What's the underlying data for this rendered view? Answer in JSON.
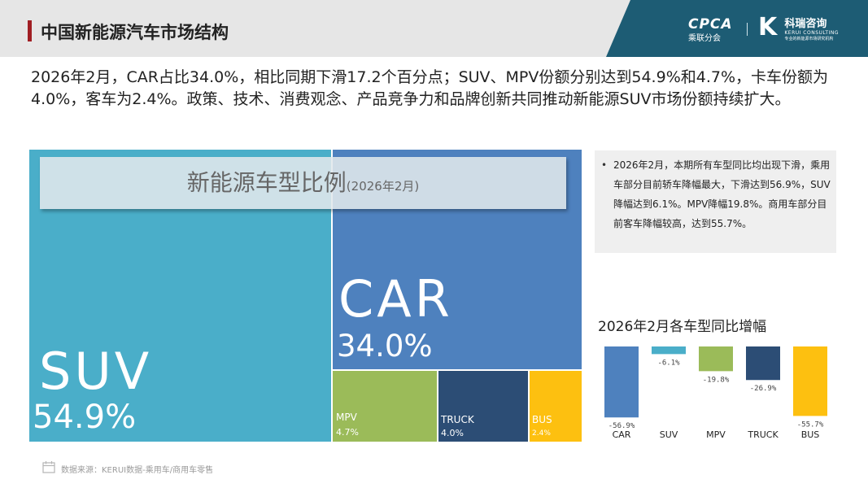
{
  "header": {
    "title": "中国新能源汽车市场结构",
    "logo_cpca": "CPCA",
    "logo_cpca_sub": "乘联分会",
    "logo_keru_cn": "科瑞咨询",
    "logo_keru_en": "KERUI CONSULTING",
    "logo_keru_en2": "专业的新能源市场研究机构"
  },
  "summary": "2026年2月，CAR占比34.0%，相比同期下滑17.2个百分点；SUV、MPV份额分别达到54.9%和4.7%，卡车份额为4.0%，客车为2.4%。政策、技术、消费观念、产品竞争力和品牌创新共同推动新能源SUV市场份额持续扩大。",
  "treemap": {
    "title": "新能源车型比例",
    "subtitle": "(2026年2月)",
    "tiles": [
      {
        "name": "SUV",
        "value": "54.9%",
        "color": "#4aaec9"
      },
      {
        "name": "CAR",
        "value": "34.0%",
        "color": "#4e81be"
      },
      {
        "name": "MPV",
        "value": "4.7%",
        "color": "#9bbb59"
      },
      {
        "name": "TRUCK",
        "value": "4.0%",
        "color": "#2c4d75"
      },
      {
        "name": "BUS",
        "value": "2.4%",
        "color": "#fdc010"
      }
    ]
  },
  "note": "2026年2月，本期所有车型同比均出现下滑，乘用车部分目前轿车降幅最大，下滑达到56.9%，SUV降幅达到6.1%。MPV降幅19.8%。商用车部分目前客车降幅较高，达到55.7%。",
  "chart_title": "2026年2月各车型同比增幅",
  "chart_data": {
    "type": "bar",
    "title": "2026年2月各车型同比增幅",
    "categories": [
      "CAR",
      "SUV",
      "MPV",
      "TRUCK",
      "BUS"
    ],
    "values": [
      -56.9,
      -6.1,
      -19.8,
      -26.9,
      -55.7
    ],
    "labels": [
      "-56.9%",
      "-6.1%",
      "-19.8%",
      "-26.9%",
      "-55.7%"
    ],
    "colors": [
      "#4e81be",
      "#4aaec9",
      "#9bbb59",
      "#2c4d75",
      "#fdc010"
    ],
    "ylim": [
      -60,
      0
    ],
    "grid": false
  },
  "source": "数据来源：KERUI数据-乘用车/商用车零售"
}
